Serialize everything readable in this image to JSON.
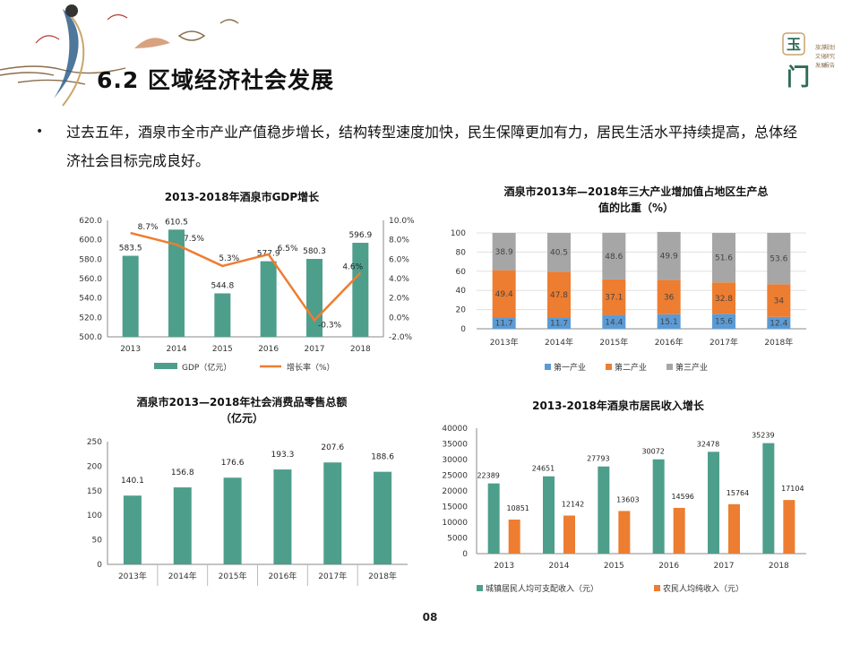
{
  "slide": {
    "title": "6.2 区域经济社会发展",
    "bullet": "过去五年，酒泉市全市产业产值稳步增长，结构转型速度加快，民生保障更加有力，居民生活水平持续提高，总体经济社会目标完成良好。",
    "page_number": "08",
    "logo_text": "玉门"
  },
  "colors": {
    "teal": "#4e9e8c",
    "orange": "#ed7d31",
    "blue": "#5b9bd5",
    "gray": "#a6a6a6"
  },
  "chart_data": [
    {
      "id": "gdp",
      "type": "bar+line",
      "title": "2013-2018年酒泉市GDP增长",
      "categories": [
        "2013",
        "2014",
        "2015",
        "2016",
        "2017",
        "2018"
      ],
      "series": [
        {
          "name": "GDP（亿元）",
          "type": "bar",
          "values": [
            583.5,
            610.5,
            544.8,
            577.9,
            580.3,
            596.9
          ],
          "labels": [
            "583.5",
            "610.5",
            "544.8",
            "577.9",
            "580.3",
            "596.9"
          ]
        },
        {
          "name": "增长率（%）",
          "type": "line",
          "axis": "right",
          "values": [
            8.7,
            7.5,
            5.3,
            6.5,
            -0.3,
            4.6
          ],
          "labels": [
            "8.7%",
            "7.5%",
            "5.3%",
            "6.5%",
            "-0.3%",
            "4.6%"
          ]
        }
      ],
      "ylim": [
        500,
        620
      ],
      "yticks": [
        "620.0",
        "600.0",
        "580.0",
        "560.0",
        "540.0",
        "520.0",
        "500.0"
      ],
      "y2lim": [
        -2,
        10
      ],
      "y2ticks": [
        "10.0%",
        "8.0%",
        "6.0%",
        "4.0%",
        "2.0%",
        "0.0%",
        "-2.0%"
      ],
      "legend": "bottom"
    },
    {
      "id": "industry",
      "type": "stacked-bar",
      "title": "酒泉市2013年—2018年三大产业增加值占地区生产总值的比重（%）",
      "title_lines": [
        "酒泉市2013年—2018年三大产业增加值占地区生产总",
        "值的比重（%）"
      ],
      "categories": [
        "2013年",
        "2014年",
        "2015年",
        "2016年",
        "2017年",
        "2018年"
      ],
      "series": [
        {
          "name": "第一产业",
          "values": [
            11.7,
            11.7,
            14.4,
            15.1,
            15.6,
            12.4
          ]
        },
        {
          "name": "第二产业",
          "values": [
            49.4,
            47.8,
            37.1,
            36,
            32.8,
            34
          ]
        },
        {
          "name": "第三产业",
          "values": [
            38.9,
            40.5,
            48.6,
            49.9,
            51.6,
            53.6
          ]
        }
      ],
      "ylim": [
        0,
        100
      ],
      "yticks": [
        "100",
        "80",
        "60",
        "40",
        "20",
        "0"
      ],
      "legend": "bottom"
    },
    {
      "id": "retail",
      "type": "bar",
      "title": "酒泉市2013—2018年社会消费品零售总额（亿元）",
      "title_lines": [
        "酒泉市2013—2018年社会消费品零售总额",
        "（亿元）"
      ],
      "categories": [
        "2013年",
        "2014年",
        "2015年",
        "2016年",
        "2017年",
        "2018年"
      ],
      "values": [
        140.1,
        156.8,
        176.6,
        193.3,
        207.6,
        188.6
      ],
      "labels": [
        "140.1",
        "156.8",
        "176.6",
        "193.3",
        "207.6",
        "188.6"
      ],
      "ylim": [
        0,
        250
      ],
      "yticks": [
        "250",
        "200",
        "150",
        "100",
        "50",
        "0"
      ]
    },
    {
      "id": "income",
      "type": "bar",
      "title": "2013-2018年酒泉市居民收入增长",
      "categories": [
        "2013",
        "2014",
        "2015",
        "2016",
        "2017",
        "2018"
      ],
      "series": [
        {
          "name": "城镇居民人均可支配收入（元）",
          "values": [
            22389,
            24651,
            27793,
            30072,
            32478,
            35239
          ]
        },
        {
          "name": "农民人均纯收入（元）",
          "values": [
            10851,
            12142,
            13603,
            14596,
            15764,
            17104
          ]
        }
      ],
      "ylim": [
        0,
        40000
      ],
      "yticks": [
        "40000",
        "35000",
        "30000",
        "25000",
        "20000",
        "15000",
        "10000",
        "5000",
        "0"
      ],
      "legend": "bottom"
    }
  ]
}
